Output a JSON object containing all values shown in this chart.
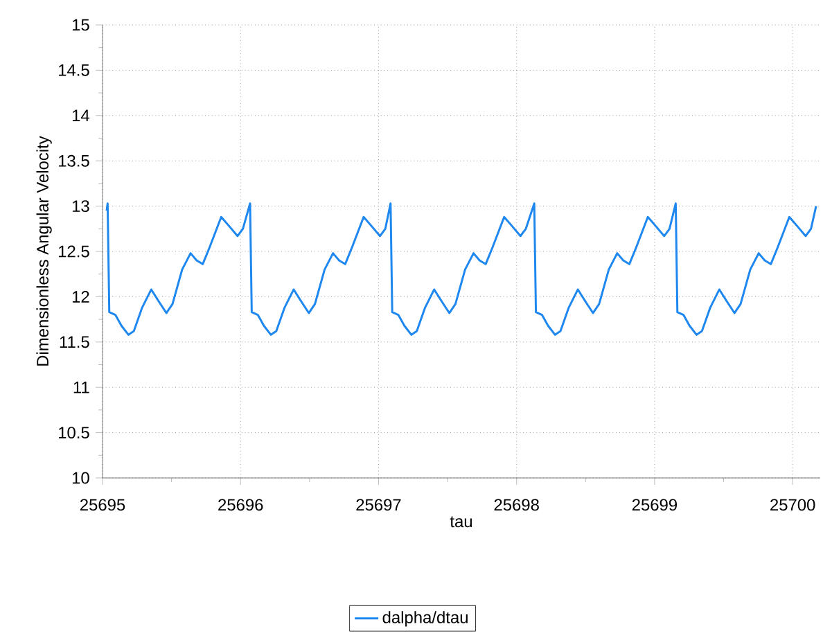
{
  "chart_data": {
    "type": "line",
    "xlabel": "tau",
    "ylabel": "Dimensionless Angular Velocity",
    "xlim": [
      25695,
      25700.2
    ],
    "xticks": [
      25695,
      25696,
      25697,
      25698,
      25699,
      25700
    ],
    "ylim": [
      10,
      15
    ],
    "yticks": [
      10,
      10.5,
      11,
      11.5,
      12,
      12.5,
      13,
      13.5,
      14,
      14.5,
      15
    ],
    "grid": true,
    "legend": "bottom",
    "marker": "none",
    "line_style": "solid",
    "series": [
      {
        "name": "dalpha/dtau",
        "color": "#1e88f0",
        "x": [
          25695.03,
          25695.037,
          25695.049,
          25695.093,
          25695.137,
          25695.188,
          25695.227,
          25695.287,
          25695.353,
          25695.407,
          25695.463,
          25695.507,
          25695.577,
          25695.638,
          25695.682,
          25695.726,
          25695.777,
          25695.86,
          25695.917,
          25695.978,
          25696.017,
          25696.069,
          25696.081,
          25696.125,
          25696.169,
          25696.22,
          25696.259,
          25696.319,
          25696.385,
          25696.439,
          25696.495,
          25696.539,
          25696.609,
          25696.67,
          25696.714,
          25696.758,
          25696.809,
          25696.892,
          25696.949,
          25697.01,
          25697.049,
          25697.087,
          25697.099,
          25697.143,
          25697.187,
          25697.238,
          25697.277,
          25697.337,
          25697.403,
          25697.457,
          25697.513,
          25697.557,
          25697.627,
          25697.688,
          25697.732,
          25697.776,
          25697.827,
          25697.91,
          25697.967,
          25698.028,
          25698.067,
          25698.128,
          25698.14,
          25698.184,
          25698.228,
          25698.279,
          25698.318,
          25698.378,
          25698.444,
          25698.498,
          25698.554,
          25698.598,
          25698.668,
          25698.729,
          25698.773,
          25698.817,
          25698.868,
          25698.951,
          25699.008,
          25699.069,
          25699.108,
          25699.153,
          25699.165,
          25699.209,
          25699.253,
          25699.304,
          25699.343,
          25699.403,
          25699.469,
          25699.523,
          25699.579,
          25699.623,
          25699.693,
          25699.754,
          25699.798,
          25699.842,
          25699.893,
          25699.976,
          25700.033,
          25700.094,
          25700.133,
          25700.17
        ],
        "values": [
          12.95,
          13.03,
          11.83,
          11.8,
          11.68,
          11.58,
          11.62,
          11.88,
          12.08,
          11.95,
          11.82,
          11.92,
          12.3,
          12.48,
          12.4,
          12.36,
          12.55,
          12.88,
          12.78,
          12.67,
          12.75,
          13.03,
          11.83,
          11.8,
          11.68,
          11.58,
          11.62,
          11.88,
          12.08,
          11.95,
          11.82,
          11.92,
          12.3,
          12.48,
          12.4,
          12.36,
          12.55,
          12.88,
          12.78,
          12.67,
          12.75,
          13.03,
          11.83,
          11.8,
          11.68,
          11.58,
          11.62,
          11.88,
          12.08,
          11.95,
          11.82,
          11.92,
          12.3,
          12.48,
          12.4,
          12.36,
          12.55,
          12.88,
          12.78,
          12.67,
          12.75,
          13.03,
          11.83,
          11.8,
          11.68,
          11.58,
          11.62,
          11.88,
          12.08,
          11.95,
          11.82,
          11.92,
          12.3,
          12.48,
          12.4,
          12.36,
          12.55,
          12.88,
          12.78,
          12.67,
          12.75,
          13.03,
          11.83,
          11.8,
          11.68,
          11.58,
          11.62,
          11.88,
          12.08,
          11.95,
          11.82,
          11.92,
          12.3,
          12.48,
          12.4,
          12.36,
          12.55,
          12.88,
          12.78,
          12.67,
          12.75,
          13.0
        ]
      }
    ]
  }
}
